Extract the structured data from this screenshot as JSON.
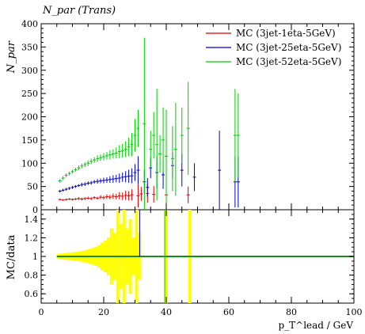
{
  "chart_data": [
    {
      "type": "scatter",
      "panel": "main",
      "title": "N_par (Trans)",
      "ylabel": "N_par",
      "xlim": [
        0,
        100
      ],
      "ylim": [
        0,
        400
      ],
      "yticks": [
        0,
        50,
        100,
        150,
        200,
        250,
        300,
        350,
        400
      ],
      "legend_position": "top-right",
      "series": [
        {
          "name": "MC (3jet-1eta-5GeV)",
          "color": "#dd0000",
          "points": [
            [
              6,
              22,
              2
            ],
            [
              7,
              21,
              2
            ],
            [
              8,
              22,
              2
            ],
            [
              9,
              23,
              2
            ],
            [
              10,
              22,
              2
            ],
            [
              11,
              23,
              2
            ],
            [
              12,
              24,
              3
            ],
            [
              13,
              23,
              3
            ],
            [
              14,
              24,
              3
            ],
            [
              15,
              25,
              3
            ],
            [
              16,
              24,
              3
            ],
            [
              17,
              26,
              3
            ],
            [
              18,
              25,
              3
            ],
            [
              19,
              27,
              4
            ],
            [
              20,
              26,
              4
            ],
            [
              21,
              28,
              5
            ],
            [
              22,
              27,
              5
            ],
            [
              23,
              29,
              6
            ],
            [
              24,
              28,
              6
            ],
            [
              25,
              30,
              8
            ],
            [
              26,
              29,
              8
            ],
            [
              27,
              31,
              10
            ],
            [
              28,
              30,
              10
            ],
            [
              29,
              32,
              12
            ],
            [
              31,
              30,
              25
            ],
            [
              32,
              34,
              15
            ],
            [
              34,
              35,
              20
            ],
            [
              36,
              33,
              18
            ],
            [
              40,
              32,
              40
            ],
            [
              47,
              32,
              18
            ]
          ]
        },
        {
          "name": "MC (3jet-25eta-5GeV)",
          "color": "#0000cc",
          "points": [
            [
              6,
              40,
              3
            ],
            [
              7,
              42,
              3
            ],
            [
              8,
              44,
              3
            ],
            [
              9,
              46,
              3
            ],
            [
              10,
              48,
              3
            ],
            [
              11,
              50,
              3
            ],
            [
              12,
              52,
              3
            ],
            [
              13,
              54,
              4
            ],
            [
              14,
              55,
              4
            ],
            [
              15,
              57,
              4
            ],
            [
              16,
              58,
              4
            ],
            [
              17,
              60,
              4
            ],
            [
              18,
              61,
              5
            ],
            [
              19,
              62,
              5
            ],
            [
              20,
              63,
              6
            ],
            [
              21,
              64,
              6
            ],
            [
              22,
              65,
              7
            ],
            [
              23,
              66,
              8
            ],
            [
              24,
              67,
              8
            ],
            [
              25,
              68,
              10
            ],
            [
              26,
              70,
              10
            ],
            [
              27,
              71,
              12
            ],
            [
              28,
              72,
              14
            ],
            [
              29,
              73,
              16
            ],
            [
              30,
              80,
              18
            ],
            [
              31,
              85,
              30
            ],
            [
              33,
              60,
              25
            ],
            [
              34,
              48,
              20
            ],
            [
              35,
              90,
              22
            ],
            [
              37,
              80,
              35
            ],
            [
              39,
              75,
              30
            ],
            [
              42,
              95,
              28
            ],
            [
              45,
              85,
              35
            ],
            [
              49,
              70,
              30
            ],
            [
              57,
              85,
              85
            ],
            [
              62,
              60,
              55
            ],
            [
              63,
              60,
              55
            ]
          ]
        },
        {
          "name": "MC (3jet-52eta-5GeV)",
          "color": "#00cc00",
          "points": [
            [
              6,
              62,
              4
            ],
            [
              7,
              68,
              4
            ],
            [
              8,
              74,
              4
            ],
            [
              9,
              78,
              4
            ],
            [
              10,
              82,
              4
            ],
            [
              11,
              86,
              4
            ],
            [
              12,
              90,
              5
            ],
            [
              13,
              94,
              5
            ],
            [
              14,
              97,
              5
            ],
            [
              15,
              100,
              6
            ],
            [
              16,
              104,
              6
            ],
            [
              17,
              107,
              6
            ],
            [
              18,
              110,
              7
            ],
            [
              19,
              112,
              7
            ],
            [
              20,
              114,
              8
            ],
            [
              21,
              116,
              8
            ],
            [
              22,
              118,
              10
            ],
            [
              23,
              120,
              10
            ],
            [
              24,
              122,
              12
            ],
            [
              25,
              125,
              14
            ],
            [
              26,
              127,
              15
            ],
            [
              27,
              130,
              17
            ],
            [
              28,
              135,
              20
            ],
            [
              29,
              140,
              25
            ],
            [
              30,
              160,
              35
            ],
            [
              31,
              175,
              40
            ],
            [
              33,
              185,
              185
            ],
            [
              35,
              130,
              40
            ],
            [
              36,
              160,
              50
            ],
            [
              37,
              140,
              120
            ],
            [
              38,
              120,
              40
            ],
            [
              39,
              150,
              70
            ],
            [
              40,
              115,
              100
            ],
            [
              42,
              110,
              70
            ],
            [
              43,
              130,
              100
            ],
            [
              45,
              160,
              60
            ],
            [
              47,
              175,
              100
            ],
            [
              62,
              160,
              100
            ],
            [
              63,
              160,
              90
            ]
          ]
        }
      ]
    },
    {
      "type": "area",
      "panel": "ratio",
      "ylabel": "MC/data",
      "xlabel": "p_T^lead / GeV",
      "xlim": [
        0,
        100
      ],
      "ylim": [
        0.5,
        1.5
      ],
      "yticks": [
        0.6,
        0.8,
        1,
        1.2,
        1.4
      ],
      "xticks": [
        0,
        20,
        40,
        60,
        80,
        100
      ],
      "reference_line": 1,
      "band_color": "#ffff00",
      "band": [
        [
          5,
          6,
          0.03
        ],
        [
          6,
          7,
          0.03
        ],
        [
          7,
          8,
          0.035
        ],
        [
          8,
          9,
          0.04
        ],
        [
          9,
          10,
          0.04
        ],
        [
          10,
          11,
          0.045
        ],
        [
          11,
          12,
          0.05
        ],
        [
          12,
          13,
          0.055
        ],
        [
          13,
          14,
          0.06
        ],
        [
          14,
          15,
          0.07
        ],
        [
          15,
          16,
          0.08
        ],
        [
          16,
          17,
          0.09
        ],
        [
          17,
          18,
          0.1
        ],
        [
          18,
          19,
          0.12
        ],
        [
          19,
          20,
          0.15
        ],
        [
          20,
          21,
          0.17
        ],
        [
          21,
          22,
          0.2
        ],
        [
          22,
          23,
          0.3
        ],
        [
          23,
          24,
          0.25
        ],
        [
          24,
          25,
          0.6
        ],
        [
          25,
          26,
          0.35
        ],
        [
          26,
          27,
          0.6
        ],
        [
          27,
          28,
          0.3
        ],
        [
          28,
          29,
          0.4
        ],
        [
          29,
          30,
          0.2
        ],
        [
          30,
          31,
          0.6
        ],
        [
          31,
          32,
          0.25
        ],
        [
          39.5,
          40.5,
          0.6
        ],
        [
          47,
          48,
          0.6
        ]
      ]
    }
  ]
}
